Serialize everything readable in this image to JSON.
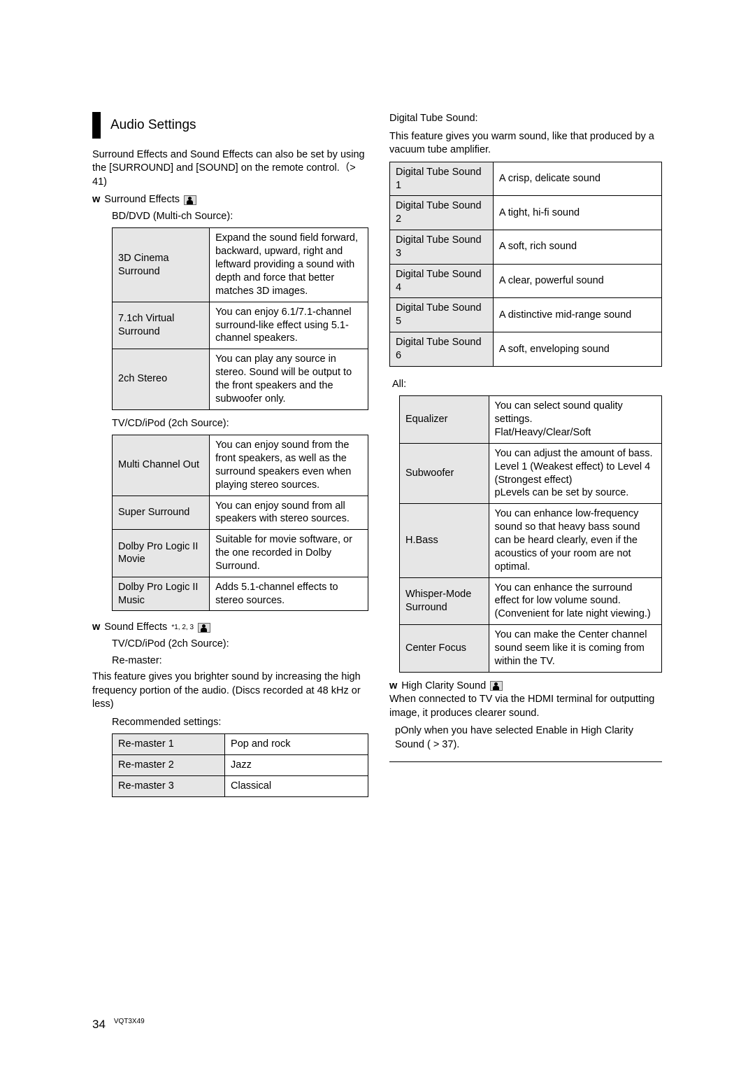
{
  "section_title": "Audio Settings",
  "intro_1": "Surround Effects and Sound Effects can also be set by using the [SURROUND] and [SOUND] on the remote control.（> 41)",
  "surround": {
    "bullet": "w",
    "label": "Surround Effects",
    "sub1": "BD/DVD (Multi-ch Source):",
    "table1": [
      [
        "3D Cinema Surround",
        "Expand the sound field forward, backward, upward, right and leftward providing a sound with depth and force that better matches 3D images."
      ],
      [
        "7.1ch Virtual Surround",
        "You can enjoy 6.1/7.1-channel surround-like effect using 5.1-channel speakers."
      ],
      [
        "2ch Stereo",
        "You can play any source in stereo. Sound will be output to the front speakers and the subwoofer only."
      ]
    ],
    "sub2": "TV/CD/iPod (2ch Source):",
    "table2": [
      [
        "Multi Channel Out",
        "You can enjoy sound from the front speakers, as well as the surround speakers even when playing stereo sources."
      ],
      [
        "Super Surround",
        "You can enjoy sound from all speakers with stereo sources."
      ],
      [
        "Dolby Pro Logic II Movie",
        "Suitable for movie software, or the one recorded in Dolby Surround."
      ],
      [
        "Dolby Pro Logic II Music",
        "Adds 5.1-channel effects to stereo sources."
      ]
    ]
  },
  "sound": {
    "bullet": "w",
    "label": "Sound Effects",
    "sup": "*1, 2, 3",
    "sub1": "TV/CD/iPod (2ch Source):",
    "sub2": "Re-master:",
    "desc": "This feature gives you brighter sound by increasing the high frequency portion of the audio. (Discs recorded at 48 kHz or less)",
    "sub3": "Recommended settings:",
    "remaster": [
      [
        "Re-master 1",
        "Pop and rock"
      ],
      [
        "Re-master 2",
        "Jazz"
      ],
      [
        "Re-master 3",
        "Classical"
      ]
    ]
  },
  "tube": {
    "head": "Digital Tube Sound:",
    "desc": "This feature gives you warm sound, like that produced by a vacuum tube amplifier.",
    "rows": [
      [
        "Digital Tube Sound 1",
        "A crisp, delicate sound"
      ],
      [
        "Digital Tube Sound 2",
        "A tight, hi-fi sound"
      ],
      [
        "Digital Tube Sound 3",
        "A soft, rich sound"
      ],
      [
        "Digital Tube Sound 4",
        "A clear, powerful sound"
      ],
      [
        "Digital Tube Sound 5",
        "A distinctive mid-range sound"
      ],
      [
        "Digital Tube Sound 6",
        "A soft, enveloping sound"
      ]
    ]
  },
  "all": {
    "head": "All:",
    "rows": [
      [
        "Equalizer",
        "You can select sound quality settings.\nFlat/Heavy/Clear/Soft"
      ],
      [
        "Subwoofer",
        "You can adjust the amount of bass.\nLevel 1 (Weakest effect) to Level 4 (Strongest effect)\npLevels can be set by source."
      ],
      [
        "H.Bass",
        "You can enhance low-frequency sound so that heavy bass sound can be heard clearly, even if the acoustics of your room are not optimal."
      ],
      [
        "Whisper-Mode Surround",
        "You can enhance the surround effect for low volume sound. (Convenient for late night viewing.)"
      ],
      [
        "Center Focus",
        "You can make the Center channel sound seem like it is coming from within the TV."
      ]
    ]
  },
  "clarity": {
    "bullet": "w",
    "label": "High Clarity Sound",
    "line1": "When connected to TV via the HDMI terminal for outputting image, it produces clearer sound.",
    "line2": "pOnly when you have selected Enable in High Clarity Sound ( > 37)."
  },
  "footer": {
    "page": "34",
    "code": "VQT3X49"
  }
}
